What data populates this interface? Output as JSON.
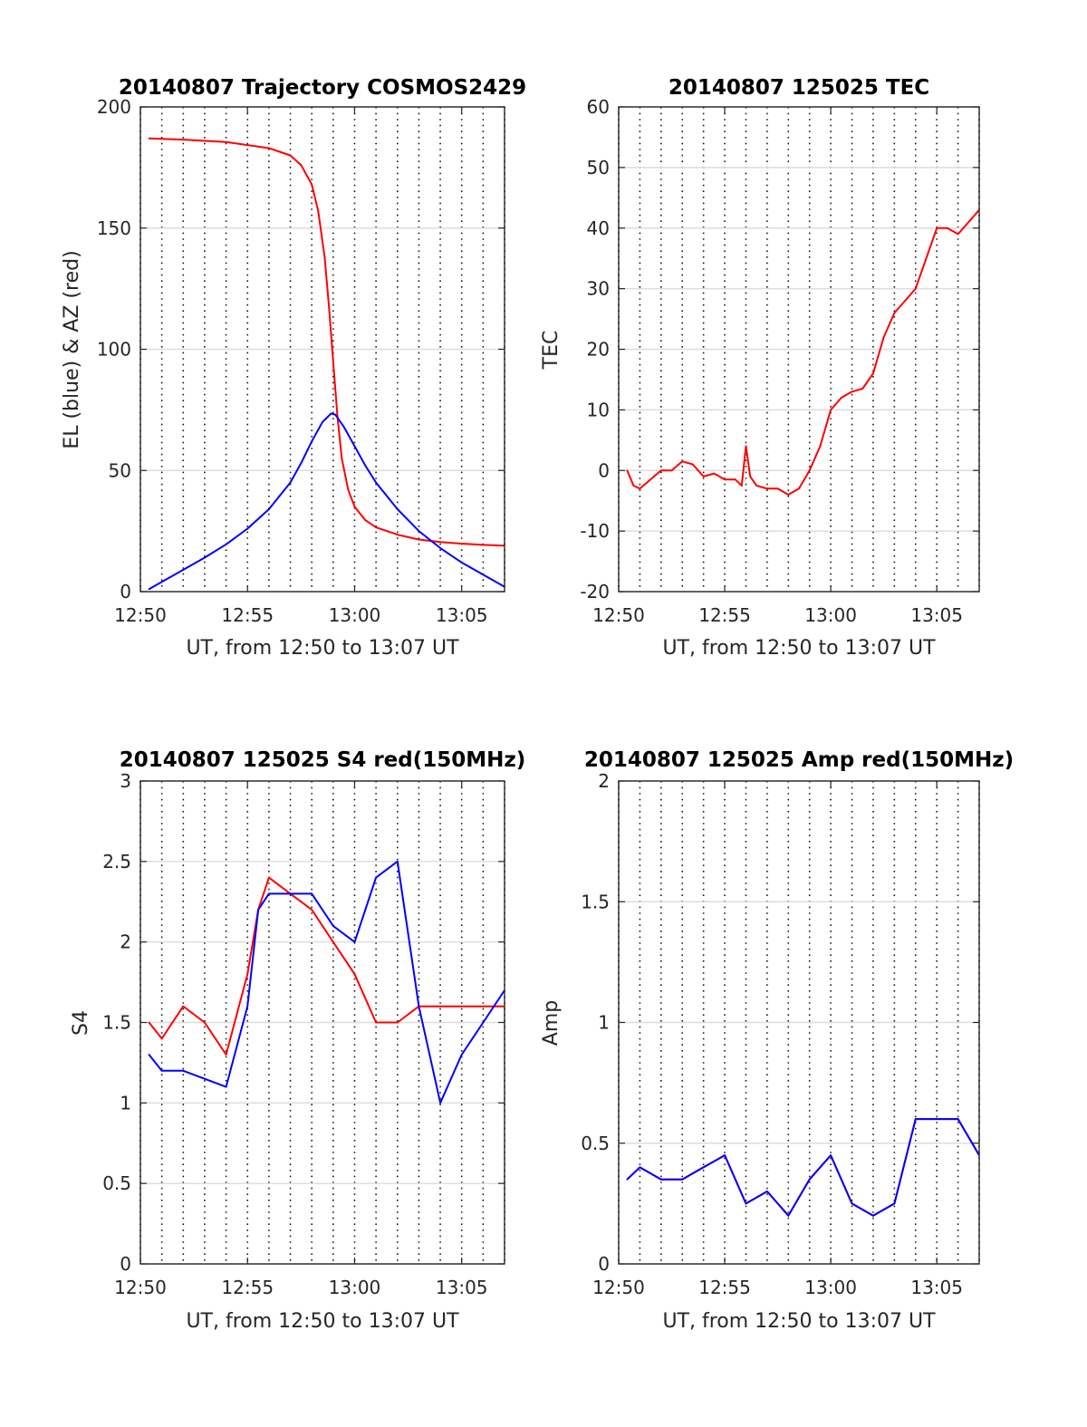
{
  "chart_data": [
    {
      "type": "line",
      "title": "20140807 Trajectory COSMOS2429",
      "xlabel": "UT, from 12:50 to 13:07 UT",
      "ylabel": "EL (blue) & AZ (red)",
      "xticks": [
        "12:50",
        "12:55",
        "13:00",
        "13:05"
      ],
      "xlim": [
        "12:50",
        "13:07"
      ],
      "ylim": [
        0,
        200
      ],
      "yticks": [
        "0",
        "50",
        "100",
        "150",
        "200"
      ],
      "grid": "vertical dotted (every 1 min), horizontal at y ticks",
      "series": [
        {
          "color": "#ff0000",
          "x": [
            "12:50.4",
            "12:52.0",
            "12:54.0",
            "12:56.0",
            "12:57.0",
            "12:57.5",
            "12:58.0",
            "12:58.3",
            "12:58.6",
            "12:58.8",
            "12:59.0",
            "12:59.2",
            "12:59.4",
            "12:59.7",
            "13:00.0",
            "13:00.5",
            "13:01.0",
            "13:02.0",
            "13:03.0",
            "13:04.0",
            "13:05.0",
            "13:06.0",
            "13:07.0"
          ],
          "values": [
            187,
            186.5,
            185.5,
            183,
            180,
            176,
            168,
            157,
            138,
            118,
            95,
            72,
            55,
            42,
            35,
            29.5,
            26.5,
            23.5,
            21.5,
            20.5,
            19.8,
            19.3,
            19
          ]
        },
        {
          "color": "#0000ff",
          "x": [
            "12:50.4",
            "12:51.0",
            "12:52.0",
            "12:53.0",
            "12:54.0",
            "12:55.0",
            "12:56.0",
            "12:57.0",
            "12:57.5",
            "12:58.0",
            "12:58.5",
            "12:58.9",
            "12:59.1",
            "12:59.5",
            "13:00.0",
            "13:00.5",
            "13:01.0",
            "13:02.0",
            "13:03.0",
            "13:04.0",
            "13:05.0",
            "13:06.0",
            "13:07.0"
          ],
          "values": [
            1,
            4,
            9,
            14,
            19.5,
            26,
            34,
            45,
            53,
            62,
            70,
            73.5,
            73,
            68,
            60,
            52,
            45,
            34,
            25,
            18,
            12,
            7,
            2
          ]
        }
      ]
    },
    {
      "type": "line",
      "title": "20140807 125025 TEC",
      "xlabel": "UT, from 12:50 to 13:07 UT",
      "ylabel": "TEC",
      "xticks": [
        "12:50",
        "12:55",
        "13:00",
        "13:05"
      ],
      "xlim": [
        "12:50",
        "13:07"
      ],
      "ylim": [
        -20,
        60
      ],
      "yticks": [
        "-20",
        "-10",
        "0",
        "10",
        "20",
        "30",
        "40",
        "50",
        "60"
      ],
      "grid": "vertical dotted (every 1 min), horizontal at y ticks",
      "series": [
        {
          "color": "#ff0000",
          "x": [
            "12:50.4",
            "12:50.7",
            "12:51.0",
            "12:51.5",
            "12:52.0",
            "12:52.5",
            "12:53.0",
            "12:53.5",
            "12:54.0",
            "12:54.5",
            "12:55.0",
            "12:55.5",
            "12:55.8",
            "12:56.0",
            "12:56.2",
            "12:56.5",
            "12:57.0",
            "12:57.5",
            "12:58.0",
            "12:58.5",
            "12:59.0",
            "12:59.5",
            "13:00.0",
            "13:00.5",
            "13:01.0",
            "13:01.5",
            "13:02.0",
            "13:02.5",
            "13:03.0",
            "13:03.5",
            "13:04.0",
            "13:04.5",
            "13:05.0",
            "13:05.5",
            "13:06.0",
            "13:06.5",
            "13:07.0"
          ],
          "values": [
            0,
            -2.5,
            -3,
            -1.5,
            0,
            0,
            1.5,
            1,
            -1,
            -0.5,
            -1.5,
            -1.5,
            -2.5,
            4,
            -1,
            -2.5,
            -3,
            -3,
            -4,
            -3,
            0,
            4,
            10,
            12,
            13,
            13.5,
            16,
            22,
            26,
            28,
            30,
            35,
            40,
            40,
            39,
            41,
            43
          ]
        }
      ]
    },
    {
      "type": "line",
      "title": "20140807 125025 S4 red(150MHz)",
      "xlabel": "UT, from 12:50 to 13:07 UT",
      "ylabel": "S4",
      "xticks": [
        "12:50",
        "12:55",
        "13:00",
        "13:05"
      ],
      "xlim": [
        "12:50",
        "13:07"
      ],
      "ylim": [
        0,
        3
      ],
      "yticks": [
        "0",
        "0.5",
        "1",
        "1.5",
        "2",
        "2.5",
        "3"
      ],
      "grid": "vertical dotted (every 1 min), horizontal at y ticks",
      "series": [
        {
          "color": "#ff0000",
          "x": [
            "12:50.4",
            "12:51.0",
            "12:52.0",
            "12:53.0",
            "12:54.0",
            "12:55.0",
            "12:55.5",
            "12:56.0",
            "12:57.0",
            "12:58.0",
            "12:59.0",
            "13:00.0",
            "13:01.0",
            "13:02.0",
            "13:03.0",
            "13:04.0",
            "13:05.0",
            "13:06.0",
            "13:07.0"
          ],
          "values": [
            1.5,
            1.4,
            1.6,
            1.5,
            1.3,
            1.8,
            2.2,
            2.4,
            2.3,
            2.2,
            2.0,
            1.8,
            1.5,
            1.5,
            1.6,
            1.6,
            1.6,
            1.6,
            1.6
          ]
        },
        {
          "color": "#0000ff",
          "x": [
            "12:50.4",
            "12:51.0",
            "12:52.0",
            "12:53.0",
            "12:54.0",
            "12:55.0",
            "12:55.5",
            "12:56.0",
            "12:57.0",
            "12:58.0",
            "12:59.0",
            "13:00.0",
            "13:01.0",
            "13:02.0",
            "13:03.0",
            "13:04.0",
            "13:05.0",
            "13:06.0",
            "13:07.0"
          ],
          "values": [
            1.3,
            1.2,
            1.2,
            1.15,
            1.1,
            1.6,
            2.2,
            2.3,
            2.3,
            2.3,
            2.1,
            2.0,
            2.4,
            2.5,
            1.6,
            1.0,
            1.3,
            1.5,
            1.7
          ]
        }
      ]
    },
    {
      "type": "line",
      "title": "20140807 125025 Amp red(150MHz)",
      "xlabel": "UT, from 12:50 to 13:07 UT",
      "ylabel": "Amp",
      "xticks": [
        "12:50",
        "12:55",
        "13:00",
        "13:05"
      ],
      "xlim": [
        "12:50",
        "13:07"
      ],
      "ylim": [
        0,
        2
      ],
      "yticks": [
        "0",
        "0.5",
        "1",
        "1.5",
        "2"
      ],
      "grid": "vertical dotted (every 1 min), horizontal at y ticks",
      "series": [
        {
          "color": "#ff0000",
          "x": [
            "12:50.4",
            "12:51.0",
            "12:52.0",
            "12:53.0",
            "12:54.0",
            "12:55.0",
            "12:56.0",
            "12:57.0",
            "12:58.0",
            "12:59.0",
            "13:00.0",
            "13:01.0",
            "13:02.0",
            "13:03.0",
            "13:04.0",
            "13:05.0",
            "13:06.0",
            "13:07.0"
          ],
          "values": [
            0.35,
            0.4,
            0.35,
            0.35,
            0.4,
            0.45,
            0.25,
            0.3,
            0.2,
            0.35,
            0.45,
            0.25,
            0.2,
            0.25,
            0.6,
            0.6,
            0.6,
            0.45
          ]
        },
        {
          "color": "#0000ff",
          "x": [
            "12:50.4",
            "12:51.0",
            "12:52.0",
            "12:53.0",
            "12:54.0",
            "12:55.0",
            "12:56.0",
            "12:57.0",
            "12:58.0",
            "12:59.0",
            "13:00.0",
            "13:01.0",
            "13:02.0",
            "13:03.0",
            "13:04.0",
            "13:05.0",
            "13:06.0",
            "13:07.0"
          ],
          "values": [
            0.35,
            0.4,
            0.35,
            0.35,
            0.4,
            0.45,
            0.25,
            0.3,
            0.2,
            0.35,
            0.45,
            0.25,
            0.2,
            0.25,
            0.6,
            0.6,
            0.6,
            0.45
          ]
        }
      ]
    }
  ]
}
